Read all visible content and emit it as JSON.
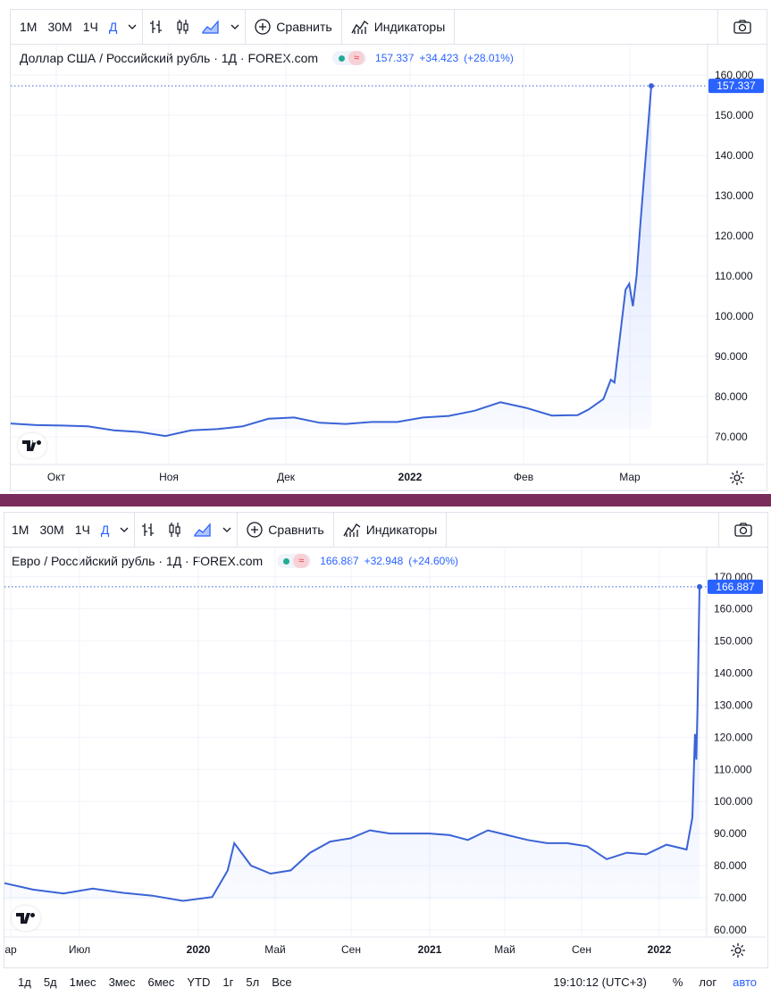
{
  "toolbar": {
    "intervals": [
      "1М",
      "30М",
      "1Ч",
      "Д"
    ],
    "compare_label": "Сравнить",
    "indicators_label": "Индикаторы"
  },
  "colors": {
    "line": "#3a63d6",
    "accent": "#2962ff",
    "divider": "#7a2c5c",
    "grid": "#f0f3fa",
    "up": "#22ab94",
    "down": "#f23645"
  },
  "charts": [
    {
      "symbol": "Доллар США / Российский рубль · 1Д · FOREX.com",
      "last_value": "157.337",
      "change": "+34.423",
      "change_pct": "(+28.01%)",
      "price_label": "157.337",
      "x_labels": [
        "Окт",
        "Ноя",
        "Дек",
        "2022",
        "Фев",
        "Мар"
      ],
      "y_labels": [
        "160.000",
        "150.000",
        "140.000",
        "130.000",
        "120.000",
        "110.000",
        "100.000",
        "90.000",
        "80.000",
        "70.000"
      ]
    },
    {
      "symbol": "Евро / Российский рубль · 1Д · FOREX.com",
      "last_value": "166.887",
      "change": "+32.948",
      "change_pct": "(+24.60%)",
      "price_label": "166.887",
      "x_labels": [
        "ар",
        "Июл",
        "2020",
        "Май",
        "Сен",
        "2021",
        "Май",
        "Сен",
        "2022"
      ],
      "y_labels": [
        "170.000",
        "160.000",
        "150.000",
        "140.000",
        "130.000",
        "120.000",
        "110.000",
        "100.000",
        "90.000",
        "80.000",
        "70.000",
        "60.000"
      ]
    }
  ],
  "footer": {
    "ranges": [
      "1д",
      "5д",
      "1мес",
      "3мес",
      "6мес",
      "YTD",
      "1г",
      "5л",
      "Все"
    ],
    "clock": "19:10:12 (UTC+3)",
    "percent_label": "%",
    "log_label": "лог",
    "auto_label": "авто"
  },
  "chart_data": [
    {
      "type": "line",
      "title": "Доллар США / Российский рубль · 1Д · FOREX.com",
      "x_axis": "date",
      "ylim": [
        66,
        162
      ],
      "grid": true,
      "x": [
        "2021-09-14",
        "2021-09-21",
        "2021-09-28",
        "2021-10-05",
        "2021-10-12",
        "2021-10-19",
        "2021-10-26",
        "2021-11-02",
        "2021-11-09",
        "2021-11-16",
        "2021-11-23",
        "2021-11-30",
        "2021-12-07",
        "2021-12-14",
        "2021-12-21",
        "2021-12-28",
        "2022-01-04",
        "2022-01-11",
        "2022-01-18",
        "2022-01-25",
        "2022-02-01",
        "2022-02-08",
        "2022-02-15",
        "2022-02-18",
        "2022-02-22",
        "2022-02-24",
        "2022-02-25",
        "2022-02-28",
        "2022-03-01",
        "2022-03-02",
        "2022-03-03",
        "2022-03-04",
        "2022-03-07"
      ],
      "values": [
        73.3,
        72.9,
        72.8,
        72.6,
        71.6,
        71.2,
        70.2,
        71.6,
        71.9,
        72.6,
        74.5,
        74.8,
        73.5,
        73.2,
        73.7,
        73.7,
        74.8,
        75.2,
        76.5,
        78.6,
        77.2,
        75.3,
        75.4,
        76.8,
        79.4,
        84.2,
        83.5,
        106.6,
        108.1,
        102.5,
        110.0,
        122.4,
        157.3
      ],
      "markers": [
        "2022-03-07"
      ]
    },
    {
      "type": "line",
      "title": "Евро / Российский рубль · 1Д · FOREX.com",
      "x_axis": "date",
      "ylim": [
        58,
        173
      ],
      "grid": true,
      "x": [
        "2019-04-01",
        "2019-05-15",
        "2019-07-01",
        "2019-08-15",
        "2019-10-01",
        "2019-11-15",
        "2020-01-01",
        "2020-02-15",
        "2020-03-10",
        "2020-03-20",
        "2020-04-15",
        "2020-05-15",
        "2020-06-15",
        "2020-07-15",
        "2020-08-15",
        "2020-09-15",
        "2020-10-15",
        "2020-11-15",
        "2020-12-15",
        "2021-01-15",
        "2021-02-15",
        "2021-03-15",
        "2021-04-15",
        "2021-05-15",
        "2021-06-15",
        "2021-07-15",
        "2021-08-15",
        "2021-09-15",
        "2021-10-15",
        "2021-11-15",
        "2021-12-15",
        "2022-01-15",
        "2022-02-15",
        "2022-02-24",
        "2022-02-28",
        "2022-03-02",
        "2022-03-04",
        "2022-03-07"
      ],
      "values": [
        74.5,
        72.5,
        71.3,
        72.8,
        71.5,
        70.6,
        69.0,
        70.2,
        78.5,
        87.0,
        80.0,
        77.5,
        78.5,
        84.0,
        87.5,
        88.5,
        91.0,
        90.0,
        90.0,
        90.0,
        89.5,
        88.0,
        91.0,
        89.5,
        88.0,
        87.0,
        87.0,
        86.0,
        82.0,
        84.0,
        83.5,
        86.5,
        85.0,
        95.0,
        121.0,
        113.0,
        130.0,
        166.9
      ],
      "markers": [
        "2022-03-07"
      ]
    }
  ]
}
